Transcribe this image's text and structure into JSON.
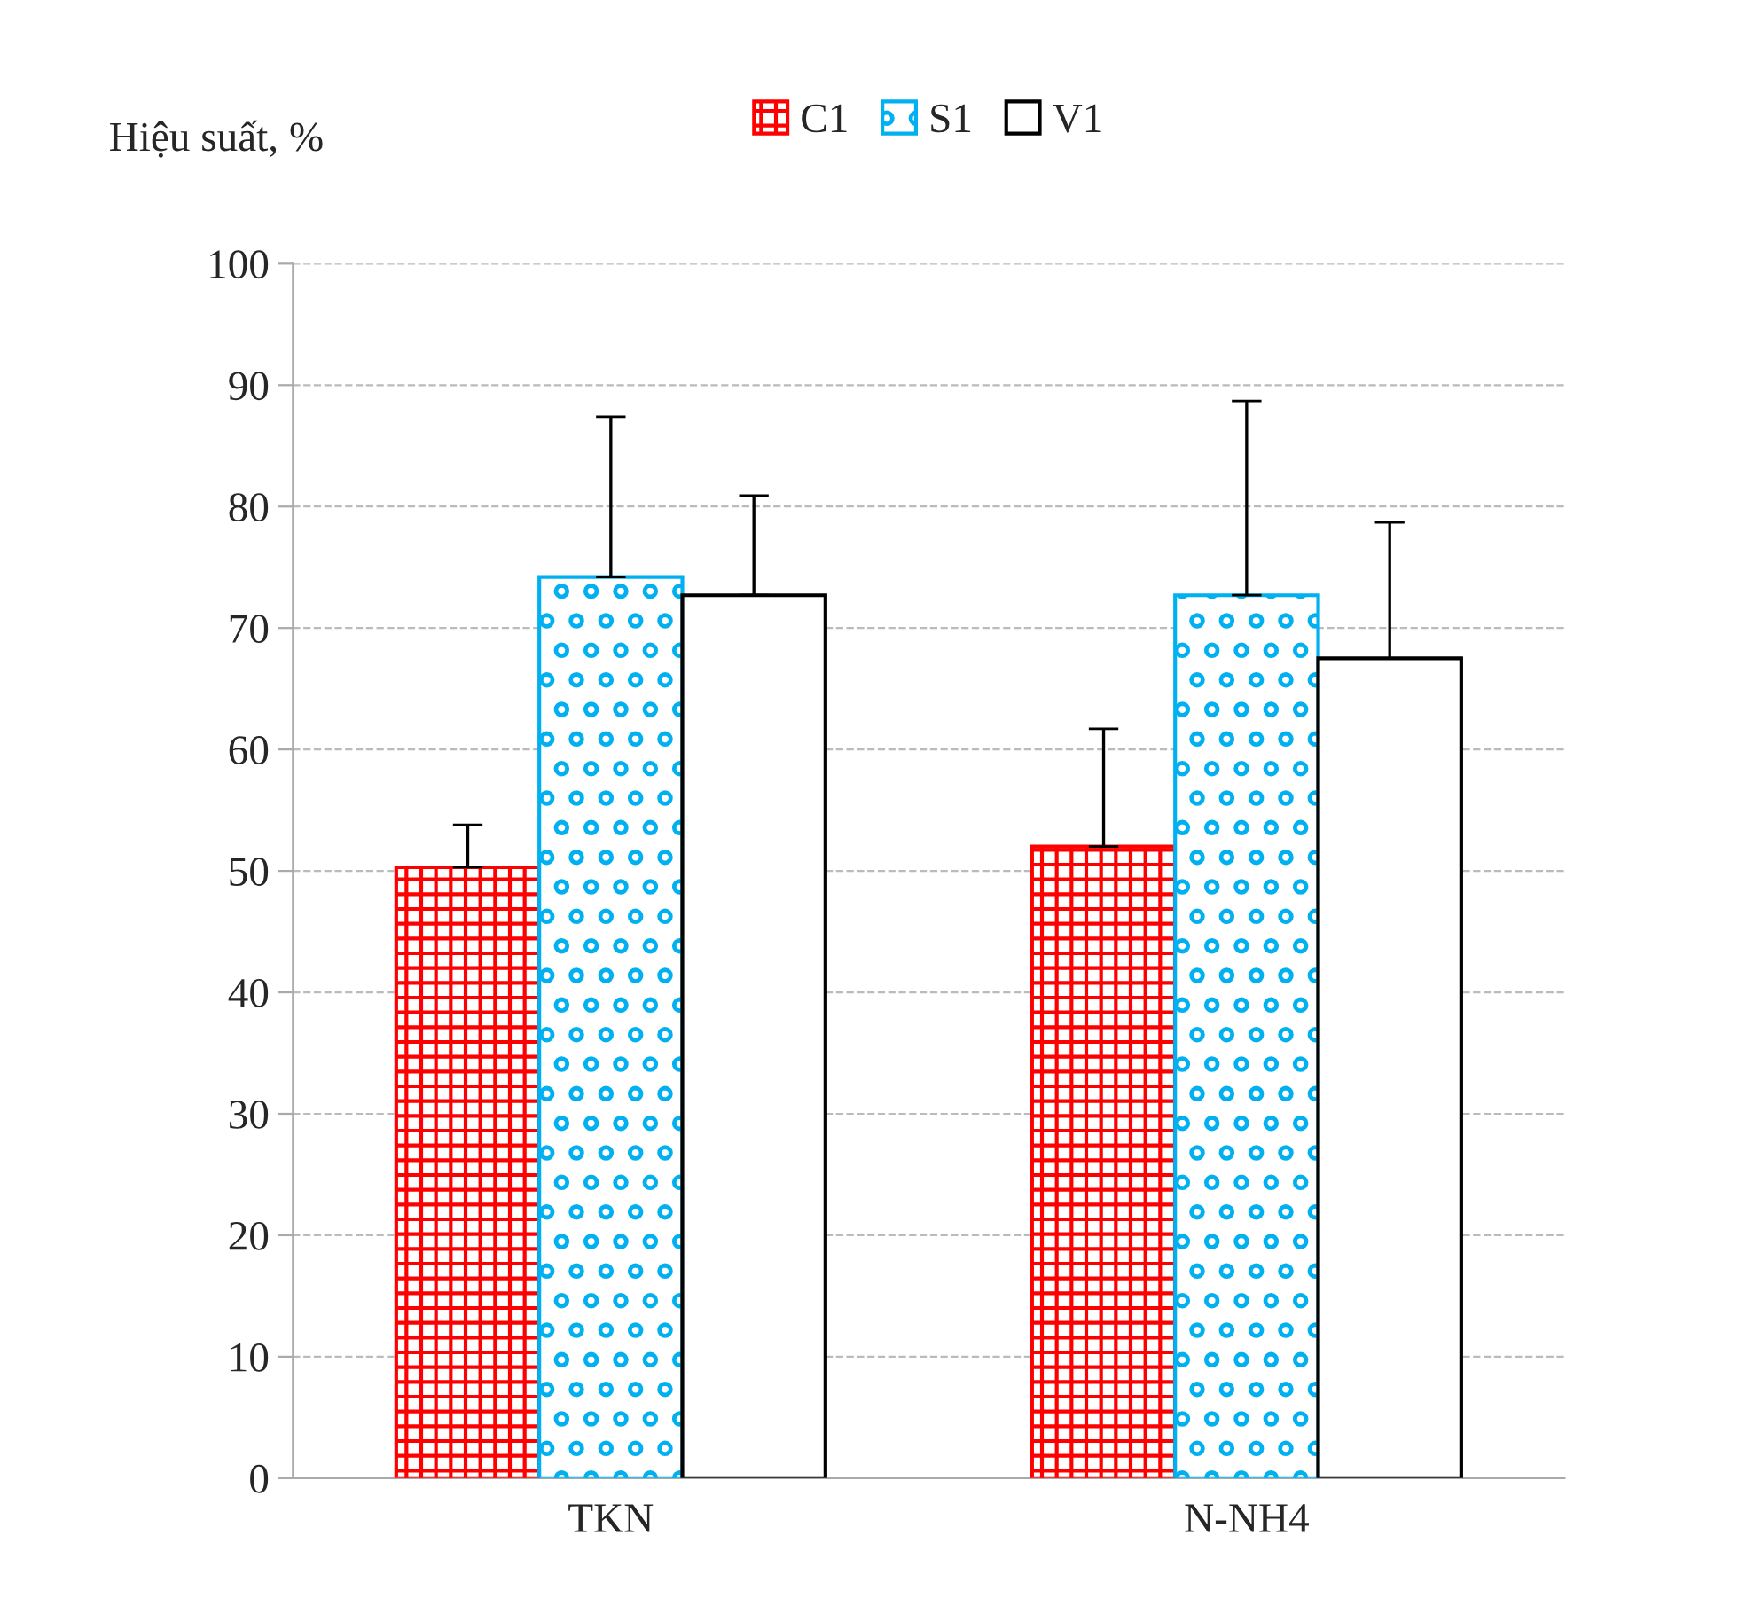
{
  "chart_data": {
    "type": "bar",
    "ylabel": "Hiệu suất, %",
    "categories": [
      "TKN",
      "N-NH4"
    ],
    "series": [
      {
        "name": "C1",
        "color": "#ff0000",
        "values": [
          50.3,
          52.0
        ],
        "errors": [
          [
            50.3,
            53.8
          ],
          [
            52.0,
            61.7
          ]
        ]
      },
      {
        "name": "S1",
        "color": "#00b0f0",
        "values": [
          74.2,
          72.7
        ],
        "errors": [
          [
            74.2,
            87.4
          ],
          [
            72.7,
            88.7
          ]
        ]
      },
      {
        "name": "V1",
        "color": "#000000",
        "values": [
          72.7,
          67.5
        ],
        "errors": [
          [
            72.7,
            80.9
          ],
          [
            67.5,
            78.7
          ]
        ]
      }
    ],
    "ylim": [
      0,
      100
    ],
    "yticks": [
      0,
      10,
      20,
      30,
      40,
      50,
      60,
      70,
      80,
      90,
      100
    ],
    "grid": "y",
    "legend": "top"
  }
}
